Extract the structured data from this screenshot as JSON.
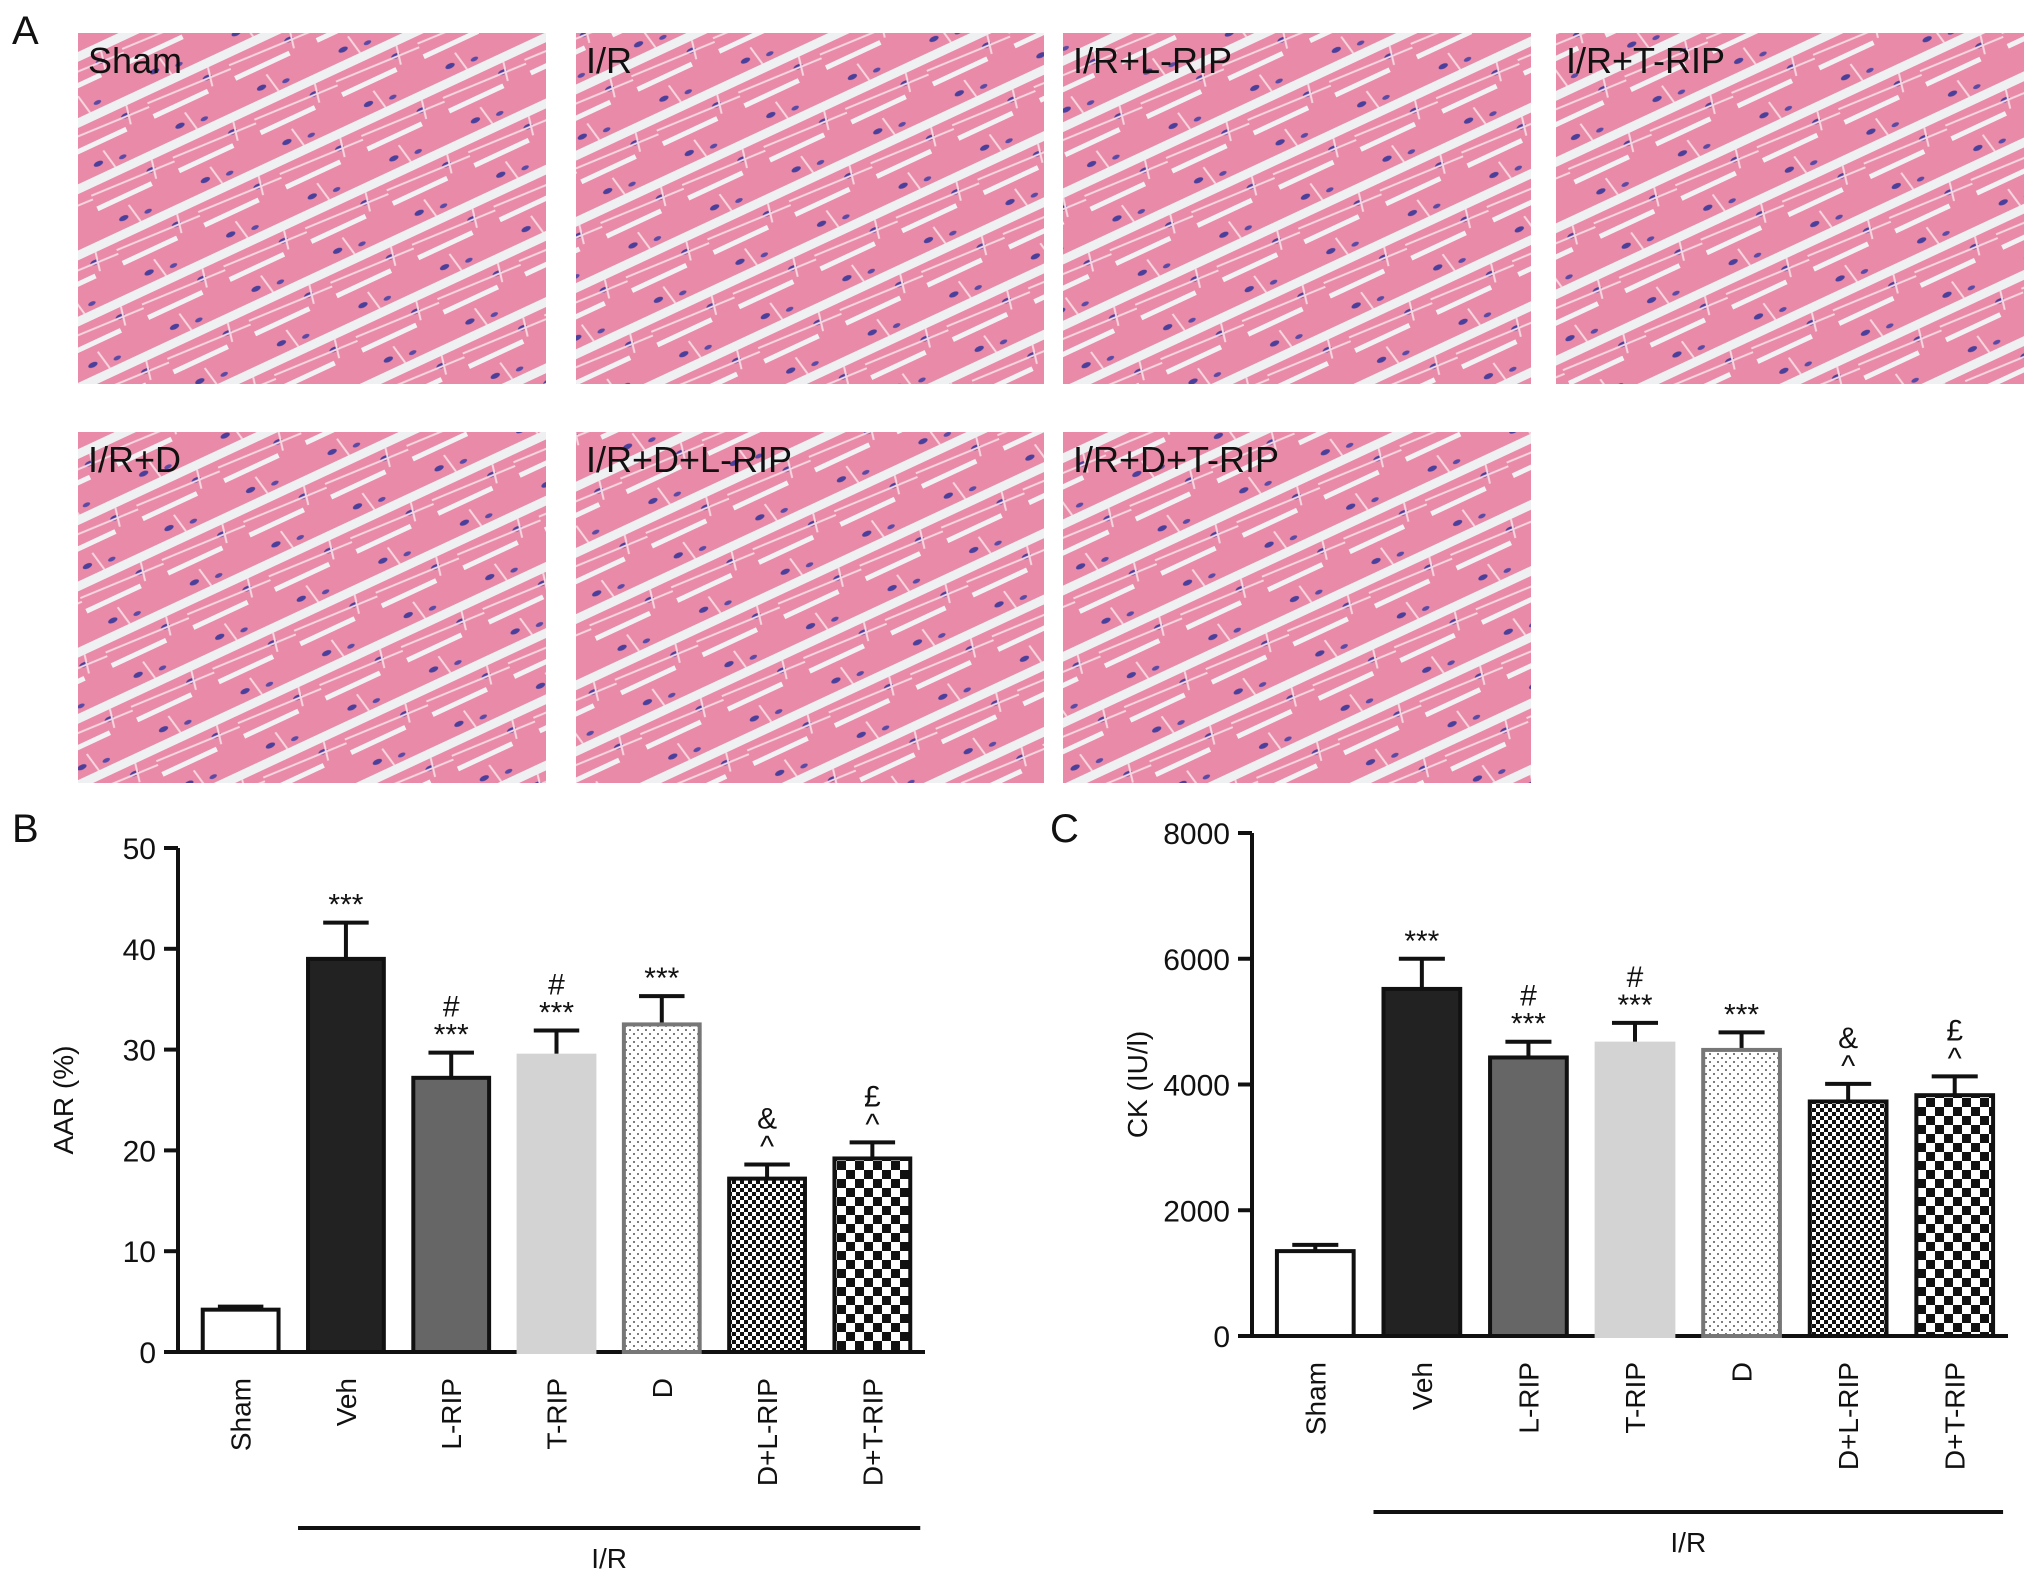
{
  "panel_labels": [
    "A",
    "B",
    "C"
  ],
  "images": [
    "Sham",
    "I/R",
    "I/R+L-RIP",
    "I/R+T-RIP",
    "I/R+D",
    "I/R+D+L-RIP",
    "I/R+D+T-RIP"
  ],
  "chart_data": [
    {
      "type": "bar",
      "y_label": "AAR (%)",
      "categories": [
        "Sham",
        "Veh",
        "L-RIP",
        "T-RIP",
        "D",
        "D+L-RIP",
        "D+T-RIP"
      ],
      "values": [
        4.2,
        39,
        27.2,
        29.4,
        32.5,
        17.2,
        19.2
      ],
      "errors": [
        0.3,
        3.6,
        2.5,
        2.5,
        2.8,
        1.4,
        1.6
      ],
      "fills": [
        "#ffffff",
        "#222222",
        "#666666",
        "#d3d3d3",
        "dots",
        "fine-checker",
        "checker"
      ],
      "annotations": [
        null,
        [
          "***"
        ],
        [
          "#",
          "***"
        ],
        [
          "#",
          "***"
        ],
        [
          "***"
        ],
        [
          "&",
          "^"
        ],
        [
          "£",
          "^"
        ]
      ],
      "group_label": "I/R",
      "ylim": [
        0,
        50
      ],
      "yticks": [
        0,
        10,
        20,
        30,
        40,
        50
      ]
    },
    {
      "type": "bar",
      "y_label": "CK (IU/l)",
      "categories": [
        "Sham",
        "Veh",
        "L-RIP",
        "T-RIP",
        "D",
        "D+L-RIP",
        "D+T-RIP"
      ],
      "values": [
        1350,
        5520,
        4430,
        4650,
        4550,
        3730,
        3830
      ],
      "errors": [
        100,
        480,
        250,
        330,
        280,
        280,
        300
      ],
      "fills": [
        "#ffffff",
        "#222222",
        "#666666",
        "#d3d3d3",
        "dots",
        "fine-checker",
        "checker"
      ],
      "annotations": [
        null,
        [
          "***"
        ],
        [
          "#",
          "***"
        ],
        [
          "#",
          "***"
        ],
        [
          "***"
        ],
        [
          "&",
          "^"
        ],
        [
          "£",
          "^"
        ]
      ],
      "group_label": "I/R",
      "ylim": [
        0,
        8000
      ],
      "yticks": [
        0,
        2000,
        4000,
        6000,
        8000
      ]
    }
  ]
}
